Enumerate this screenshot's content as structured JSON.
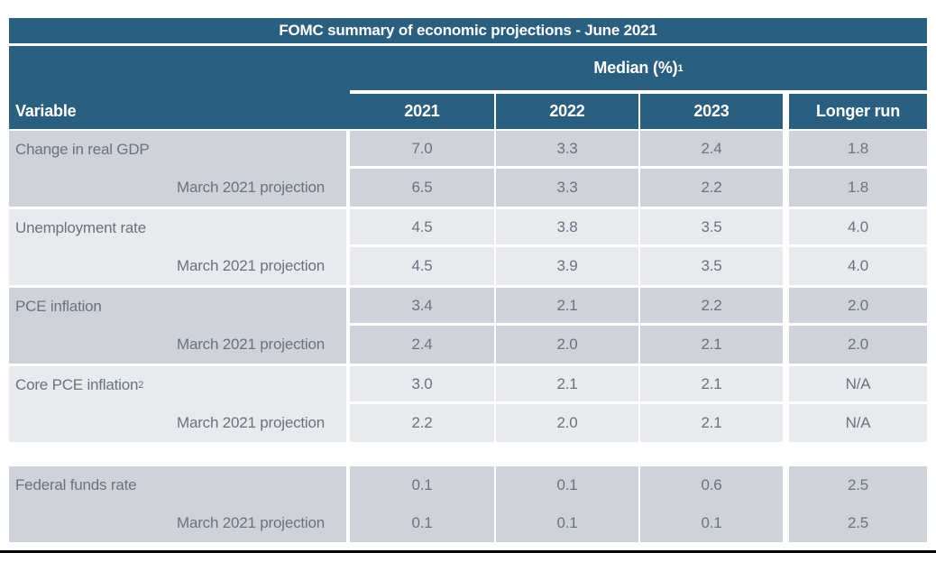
{
  "title_bar": "FOMC summary of economic projections - June 2021",
  "header": {
    "group_label": "Median (%)",
    "group_sup": "1",
    "variable_label": "Variable",
    "col_2021": "2021",
    "col_2022": "2022",
    "col_2023": "2023",
    "col_longer_run": "Longer run"
  },
  "rows": [
    {
      "label": "Change in real GDP",
      "sup": "",
      "values": [
        "7.0",
        "3.3",
        "2.4",
        "1.8"
      ]
    },
    {
      "label": "March 2021 projection",
      "sup": "",
      "values": [
        "6.5",
        "3.3",
        "2.2",
        "1.8"
      ]
    },
    {
      "label": "Unemployment rate",
      "sup": "",
      "values": [
        "4.5",
        "3.8",
        "3.5",
        "4.0"
      ]
    },
    {
      "label": "March 2021 projection",
      "sup": "",
      "values": [
        "4.5",
        "3.9",
        "3.5",
        "4.0"
      ]
    },
    {
      "label": "PCE inflation",
      "sup": "",
      "values": [
        "3.4",
        "2.1",
        "2.2",
        "2.0"
      ]
    },
    {
      "label": "March 2021 projection",
      "sup": "",
      "values": [
        "2.4",
        "2.0",
        "2.1",
        "2.0"
      ]
    },
    {
      "label": "Core PCE inflation",
      "sup": "2",
      "values": [
        "3.0",
        "2.1",
        "2.1",
        "N/A"
      ]
    },
    {
      "label": "March 2021 projection",
      "sup": "",
      "values": [
        "2.2",
        "2.0",
        "2.1",
        "N/A"
      ]
    },
    {
      "label": "Federal funds rate",
      "sup": "",
      "values": [
        "0.1",
        "0.1",
        "0.6",
        "2.5"
      ]
    },
    {
      "label": "March 2021 projection",
      "sup": "",
      "values": [
        "0.1",
        "0.1",
        "0.1",
        "2.5"
      ]
    }
  ],
  "colors": {
    "header_blue": "#2B5F80",
    "row_dark": "#CFD3D9",
    "row_light": "#E8EAED",
    "data_text": "#68737F",
    "bottom_rule": "#000000",
    "header_text": "#FFFFFF"
  },
  "chart_data": {
    "type": "table",
    "title": "FOMC summary of economic projections - June 2021",
    "group_header": "Median (%)1",
    "columns": [
      "Variable",
      "2021",
      "2022",
      "2023",
      "Longer run"
    ],
    "rows": [
      [
        "Change in real GDP",
        7.0,
        3.3,
        2.4,
        1.8
      ],
      [
        "March 2021 projection",
        6.5,
        3.3,
        2.2,
        1.8
      ],
      [
        "Unemployment rate",
        4.5,
        3.8,
        3.5,
        4.0
      ],
      [
        "March 2021 projection",
        4.5,
        3.9,
        3.5,
        4.0
      ],
      [
        "PCE inflation",
        3.4,
        2.1,
        2.2,
        2.0
      ],
      [
        "March 2021 projection",
        2.4,
        2.0,
        2.1,
        2.0
      ],
      [
        "Core PCE inflation",
        3.0,
        2.1,
        2.1,
        "N/A"
      ],
      [
        "March 2021 projection",
        2.2,
        2.0,
        2.1,
        "N/A"
      ],
      [
        "Federal funds rate",
        0.1,
        0.1,
        0.6,
        2.5
      ],
      [
        "March 2021 projection",
        0.1,
        0.1,
        0.1,
        2.5
      ]
    ],
    "footnote_markers": {
      "group_header": "1",
      "core_pce_inflation": "2"
    },
    "layout": "rows grouped in pairs (current projection + March 2021 projection); alternating gray band per pair; blank spacer row before Federal funds rate"
  }
}
